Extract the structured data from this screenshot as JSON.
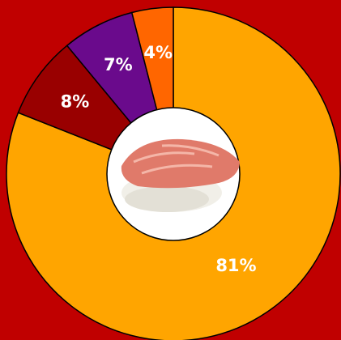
{
  "chart_data": {
    "type": "donut",
    "values": [
      81,
      8,
      7,
      4
    ],
    "value_labels": [
      "81%",
      "8%",
      "7%",
      "4%"
    ],
    "colors": [
      "#ffa500",
      "#990000",
      "#6a0a8c",
      "#ff6600"
    ],
    "background": "#c00000"
  }
}
